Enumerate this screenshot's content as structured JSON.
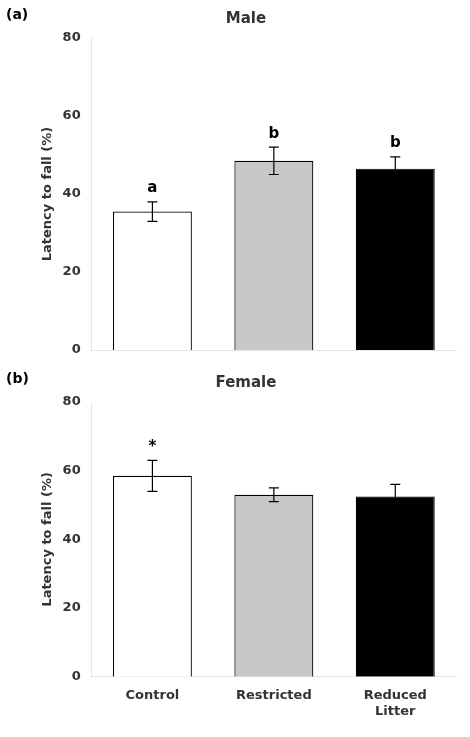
{
  "chart_data": [
    {
      "type": "bar",
      "title": "Male",
      "panel_label": "(a)",
      "categories": [
        "Control",
        "Restricted",
        "Reduced\nLitter"
      ],
      "values": [
        35.5,
        48.5,
        46.5
      ],
      "errors": [
        2.5,
        3.5,
        3.0
      ],
      "colors": [
        "white",
        "#c8c8c8",
        "black"
      ],
      "annotations": [
        "a",
        "b",
        "b"
      ],
      "y_label": "Latency to fall (%)",
      "ylim": [
        0,
        80
      ],
      "yticks": [
        0,
        20,
        40,
        60,
        80
      ],
      "grid": false,
      "tick_labels": "y"
    },
    {
      "type": "bar",
      "title": "Female",
      "panel_label": "(b)",
      "categories": [
        "Control",
        "Restricted",
        "Reduced\nLitter"
      ],
      "values": [
        58.5,
        53.0,
        52.5
      ],
      "errors": [
        4.5,
        2.0,
        3.5
      ],
      "colors": [
        "white",
        "#c8c8c8",
        "black"
      ],
      "annotations": [
        "*",
        null,
        null
      ],
      "y_label": "Latency to fall (%)",
      "ylim": [
        0,
        80
      ],
      "yticks": [
        0,
        20,
        40,
        60,
        80
      ],
      "grid": false
    }
  ]
}
